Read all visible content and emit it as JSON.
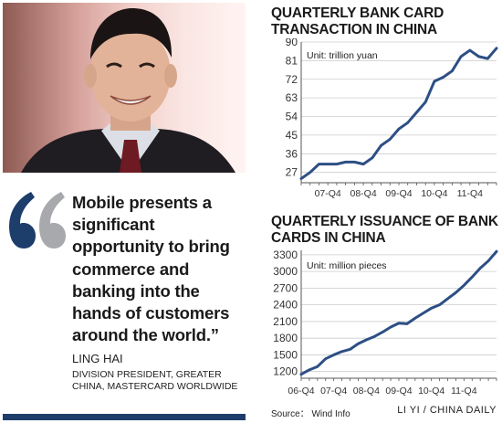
{
  "quote": {
    "text": "Mobile presents a significant opportunity to bring commerce and banking into the hands of customers around the world.”",
    "speaker": "LING HAI",
    "speaker_title": "DIVISION PRESIDENT, GREATER CHINA, MASTERCARD WORLDWIDE"
  },
  "colors": {
    "line": "#2d4f85",
    "accent": "#1d3d6b",
    "grid": "#cccccc"
  },
  "chart_data": [
    {
      "type": "line",
      "title": "QUARTERLY BANK CARD TRANSACTION IN CHINA",
      "unit_label": "Unit: trillion yuan",
      "ylim": [
        22,
        90
      ],
      "y_ticks": [
        27,
        36,
        45,
        54,
        63,
        72,
        81,
        90
      ],
      "x_ticks": [
        "07-Q4",
        "08-Q4",
        "09-Q4",
        "10-Q4",
        "11-Q4"
      ],
      "x_tick_positions": [
        3,
        7,
        11,
        15,
        19
      ],
      "x_range": [
        0,
        22
      ],
      "grid": "horizontal",
      "x": [
        0,
        1,
        2,
        3,
        4,
        5,
        6,
        7,
        8,
        9,
        10,
        11,
        12,
        13,
        14,
        15,
        16,
        17,
        18,
        19,
        20,
        21,
        22
      ],
      "values": [
        24,
        27,
        31,
        31,
        31,
        32,
        32,
        31,
        34,
        40,
        43,
        48,
        51,
        56,
        61,
        71,
        73,
        76,
        83,
        86,
        83,
        82,
        87
      ]
    },
    {
      "type": "line",
      "title": "QUARTERLY ISSUANCE OF BANK CARDS IN CHINA",
      "unit_label": "Unit: million pieces",
      "ylim": [
        1080,
        3380
      ],
      "y_ticks": [
        1200,
        1500,
        1800,
        2100,
        2400,
        2700,
        3000,
        3300
      ],
      "x_ticks": [
        "06-Q4",
        "07-Q4",
        "08-Q4",
        "09-Q4",
        "10-Q4",
        "11-Q4"
      ],
      "x_tick_positions": [
        0,
        4,
        8,
        12,
        16,
        20
      ],
      "x_range": [
        0,
        24
      ],
      "grid": "horizontal",
      "x": [
        0,
        1,
        2,
        3,
        4,
        5,
        6,
        7,
        8,
        9,
        10,
        11,
        12,
        13,
        14,
        15,
        16,
        17,
        18,
        19,
        20,
        21,
        22,
        23,
        24
      ],
      "values": [
        1150,
        1230,
        1290,
        1430,
        1500,
        1560,
        1600,
        1700,
        1770,
        1830,
        1910,
        2000,
        2070,
        2060,
        2160,
        2250,
        2340,
        2400,
        2510,
        2620,
        2750,
        2900,
        3060,
        3190,
        3360
      ]
    }
  ],
  "footer": {
    "source": "Source： Wind Info",
    "credit": "LI YI / CHINA DAILY"
  }
}
